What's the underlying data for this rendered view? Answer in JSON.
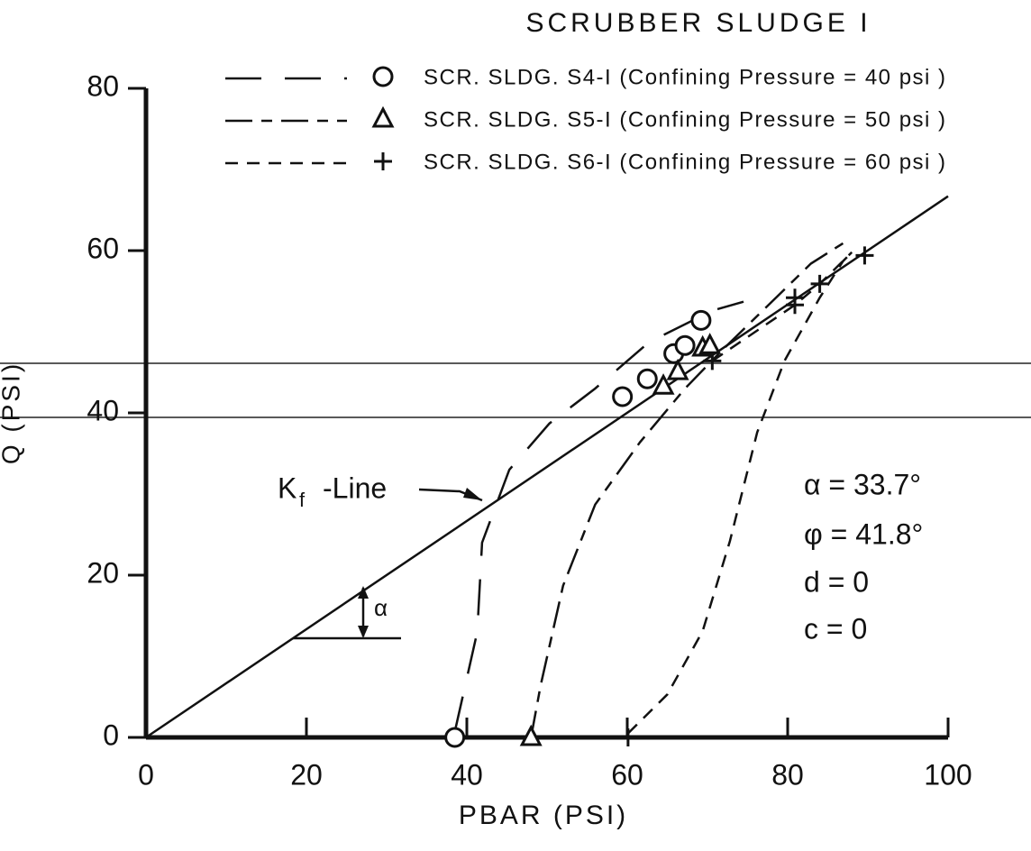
{
  "chart_data": {
    "type": "line",
    "title": "SCRUBBER SLUDGE I",
    "x_label": "PBAR (PSI)",
    "y_label": "Q (PSI)",
    "xlim": [
      0,
      100
    ],
    "xticks": [
      0,
      20,
      40,
      60,
      80,
      100
    ],
    "ylim": [
      0,
      80
    ],
    "yticks": [
      0,
      20,
      40,
      60,
      80
    ],
    "color": "#111111",
    "series": [
      {
        "name": "SCR. SLDG. S4-I (Confining Pressure = 40 psi )",
        "marker": "circle",
        "dash": "40 26",
        "x": [
          38.5,
          41.3,
          41.9,
          45.3,
          50.3,
          56,
          62.7,
          70.6,
          74.5
        ],
        "y": [
          0.7,
          13,
          24,
          33,
          38.7,
          43,
          48.7,
          52.6,
          53.7
        ],
        "marker_x": [
          38.5,
          59.4,
          62.5,
          65.8,
          67.2,
          69.2
        ],
        "marker_y": [
          0,
          42,
          44.2,
          47.3,
          48.3,
          51.4
        ]
      },
      {
        "name": "SCR. SLDG. S5-I (Confining Pressure = 50 psi )",
        "marker": "triangle",
        "dash": "30 10 12 10",
        "x": [
          48,
          49.2,
          52,
          56,
          61.6,
          67.2,
          71.7,
          77.3,
          82.9,
          86.9
        ],
        "y": [
          0,
          6.4,
          18.7,
          28.7,
          36.4,
          43,
          47.6,
          53,
          58.4,
          60.9
        ],
        "marker_x": [
          48,
          64.5,
          66.3,
          69.4,
          70.3
        ],
        "marker_y": [
          0,
          43.3,
          45.1,
          48,
          48.3
        ]
      },
      {
        "name": "SCR. SLDG. S6-I (Confining Pressure = 60 psi )",
        "marker": "plus",
        "dash": "14 10",
        "x": [
          60.1,
          65,
          69.4,
          72.8,
          76.2,
          79.6,
          84,
          86.9,
          88,
          null,
          70.6,
          80.9,
          84,
          88
        ],
        "y": [
          0.5,
          5.3,
          13.1,
          24.2,
          37.6,
          46.4,
          54.2,
          58.7,
          59.8,
          null,
          46.4,
          53.3,
          55.9,
          59.8
        ],
        "marker_x": [
          60.1,
          70.6,
          80.9,
          80.9,
          84,
          89.6
        ],
        "marker_y": [
          0,
          46.4,
          53.3,
          54.2,
          55.9,
          59.4
        ]
      }
    ],
    "kf_line": {
      "x": [
        0,
        100
      ],
      "y": [
        0,
        66.7
      ]
    },
    "annotations": [
      "K",
      "f",
      "-Line",
      "α",
      "α = 33.7°",
      "φ = 41.8°",
      "d = 0",
      "c = 0"
    ]
  }
}
